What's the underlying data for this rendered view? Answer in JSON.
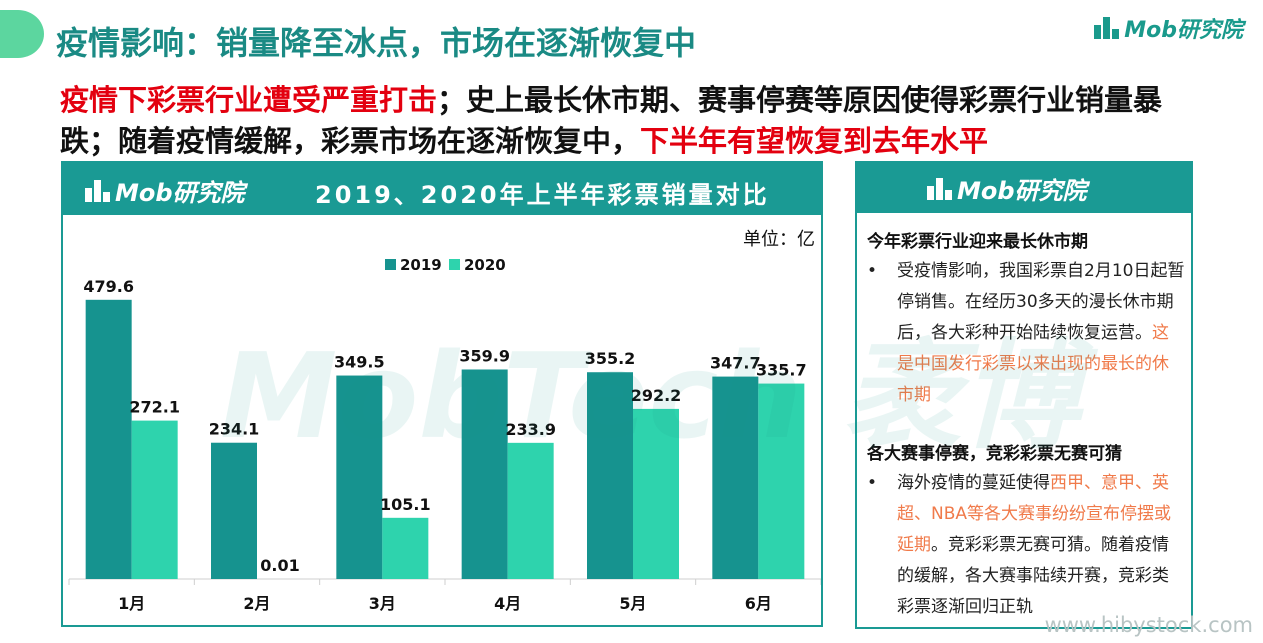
{
  "page": {
    "title": "疫情影响：销量降至冰点，市场在逐渐恢复中",
    "brand": "Mob研究院",
    "subtitle_part1": "疫情下彩票行业遭受严重打击",
    "subtitle_part2": "；史上最长休市期、赛事停赛等原因使得彩票行业销量暴跌；随着疫情缓解，彩票市场在逐渐恢复中，",
    "subtitle_part3": "下半年有望恢复到去年水平",
    "watermark": "MobTech 袤博",
    "corner_watermark": "www.hibystock.com"
  },
  "chart_panel": {
    "title": "2019、2020年上半年彩票销量对比",
    "unit": "单位：亿"
  },
  "chart_data": {
    "type": "bar",
    "title": "2019、2020年上半年彩票销量对比",
    "categories": [
      "1月",
      "2月",
      "3月",
      "4月",
      "5月",
      "6月"
    ],
    "series": [
      {
        "name": "2019",
        "values": [
          479.6,
          234.1,
          349.5,
          359.9,
          355.2,
          347.7
        ],
        "labels": [
          "479.6",
          "234.1",
          "349.5",
          "359.9",
          "355.2",
          "347.7"
        ],
        "color": "#16938f"
      },
      {
        "name": "2020",
        "values": [
          272.1,
          0.01,
          105.1,
          233.9,
          292.2,
          335.7
        ],
        "labels": [
          "272.1",
          "0.01",
          "105.1",
          "233.9",
          "292.2",
          "335.7"
        ],
        "color": "#2ed3ad"
      }
    ],
    "ylim": [
      0,
      560
    ],
    "grid": false,
    "legend": "top-center",
    "xlabel": "",
    "ylabel": ""
  },
  "side_panel": {
    "section1_title": "今年彩票行业迎来最长休市期",
    "section1_text": "受疫情影响，我国彩票自2月10日起暂停销售。在经历30多天的漫长休市期后，各大彩种开始陆续恢复运营。",
    "section1_highlight": "这是中国发行彩票以来出现的最长的休市期",
    "section2_title": "各大赛事停赛，竞彩彩票无赛可猜",
    "section2_text_a": "海外疫情的蔓延使得",
    "section2_highlight": "西甲、意甲、英超、NBA等各大赛事纷纷宣布停摆或延期",
    "section2_text_b": "。竞彩彩票无赛可猜。随着疫情的缓解，各大赛事陆续开赛，竞彩类彩票逐渐回归正轨",
    "bullet": "•"
  },
  "colors": {
    "teal": "#1a9a94",
    "red": "#e3000f",
    "orange": "#f07a4a",
    "bar2019": "#16938f",
    "bar2020": "#2ed3ad"
  }
}
